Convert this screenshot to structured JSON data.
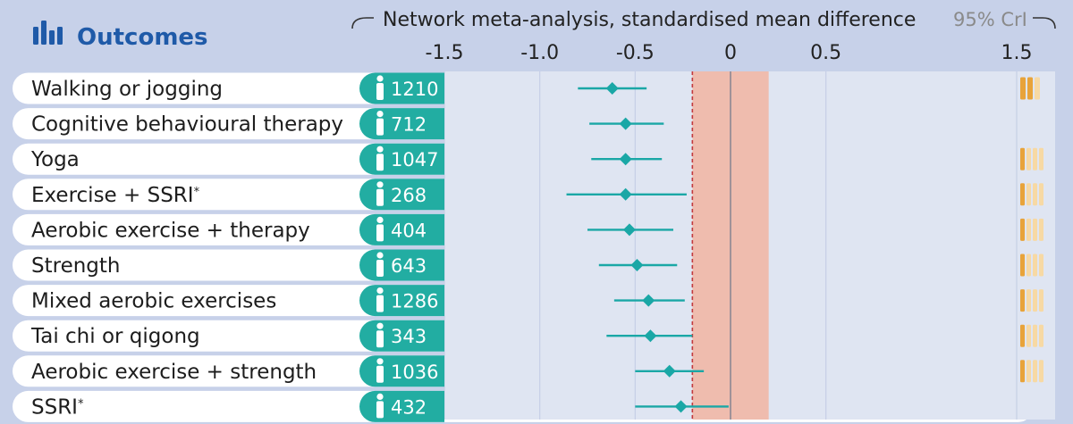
{
  "header": {
    "title": "Outcomes",
    "axis_title": "Network meta-analysis, standardised mean difference",
    "interval_label": "95% CrI"
  },
  "chart_data": {
    "type": "forest",
    "title": "Network meta-analysis, standardised mean difference",
    "xlim": [
      -1.5,
      1.5
    ],
    "x_ticks": [
      -1.5,
      -1.0,
      -0.5,
      0,
      0.5,
      1.5
    ],
    "x_tick_labels": [
      "-1.5",
      "-1.0",
      "-0.5",
      "0",
      "0.5",
      "1.5"
    ],
    "reference_line": -0.2,
    "null_region": [
      -0.2,
      0.2
    ],
    "rows": [
      {
        "label": "Walking or jogging",
        "sup": "",
        "n": "1210",
        "est": -0.62,
        "lo": -0.8,
        "hi": -0.44,
        "bars_total": 3,
        "bars_filled": 2,
        "bars_shown": true
      },
      {
        "label": "Cognitive behavioural therapy",
        "sup": "",
        "n": "712",
        "est": -0.55,
        "lo": -0.74,
        "hi": -0.35,
        "bars_total": 0,
        "bars_filled": 0,
        "bars_shown": false
      },
      {
        "label": "Yoga",
        "sup": "",
        "n": "1047",
        "est": -0.55,
        "lo": -0.73,
        "hi": -0.36,
        "bars_total": 4,
        "bars_filled": 1,
        "bars_shown": true
      },
      {
        "label": "Exercise + SSRI",
        "sup": "*",
        "n": "268",
        "est": -0.55,
        "lo": -0.86,
        "hi": -0.23,
        "bars_total": 4,
        "bars_filled": 1,
        "bars_shown": true
      },
      {
        "label": "Aerobic exercise + therapy",
        "sup": "",
        "n": "404",
        "est": -0.53,
        "lo": -0.75,
        "hi": -0.3,
        "bars_total": 4,
        "bars_filled": 1,
        "bars_shown": true
      },
      {
        "label": "Strength",
        "sup": "",
        "n": "643",
        "est": -0.49,
        "lo": -0.69,
        "hi": -0.28,
        "bars_total": 4,
        "bars_filled": 1,
        "bars_shown": true
      },
      {
        "label": "Mixed aerobic exercises",
        "sup": "",
        "n": "1286",
        "est": -0.43,
        "lo": -0.61,
        "hi": -0.24,
        "bars_total": 4,
        "bars_filled": 1,
        "bars_shown": true
      },
      {
        "label": "Tai chi or qigong",
        "sup": "",
        "n": "343",
        "est": -0.42,
        "lo": -0.65,
        "hi": -0.2,
        "bars_total": 4,
        "bars_filled": 1,
        "bars_shown": true
      },
      {
        "label": "Aerobic exercise + strength",
        "sup": "",
        "n": "1036",
        "est": -0.32,
        "lo": -0.5,
        "hi": -0.14,
        "bars_total": 4,
        "bars_filled": 1,
        "bars_shown": true
      },
      {
        "label": "SSRI",
        "sup": "*",
        "n": "432",
        "est": -0.26,
        "lo": -0.5,
        "hi": -0.01,
        "bars_total": 0,
        "bars_filled": 0,
        "bars_shown": false
      }
    ]
  },
  "colors": {
    "background": "#c7d1e9",
    "row_label_bg": "#ffffff",
    "n_pill_bg": "#22ada2",
    "plot_bg": "#dfe5f2",
    "null_region": "#efbcae",
    "reference_line": "#c33a3e",
    "estimate": "#1aa7a6",
    "header_blue": "#1f5aa8",
    "certainty_filled": "#e8a33a",
    "certainty_empty": "#f7d9a4",
    "gridline": "#c6cfe6"
  },
  "icons": {
    "title_icon": "bar-chart-icon",
    "n_icon": "person-icon"
  }
}
